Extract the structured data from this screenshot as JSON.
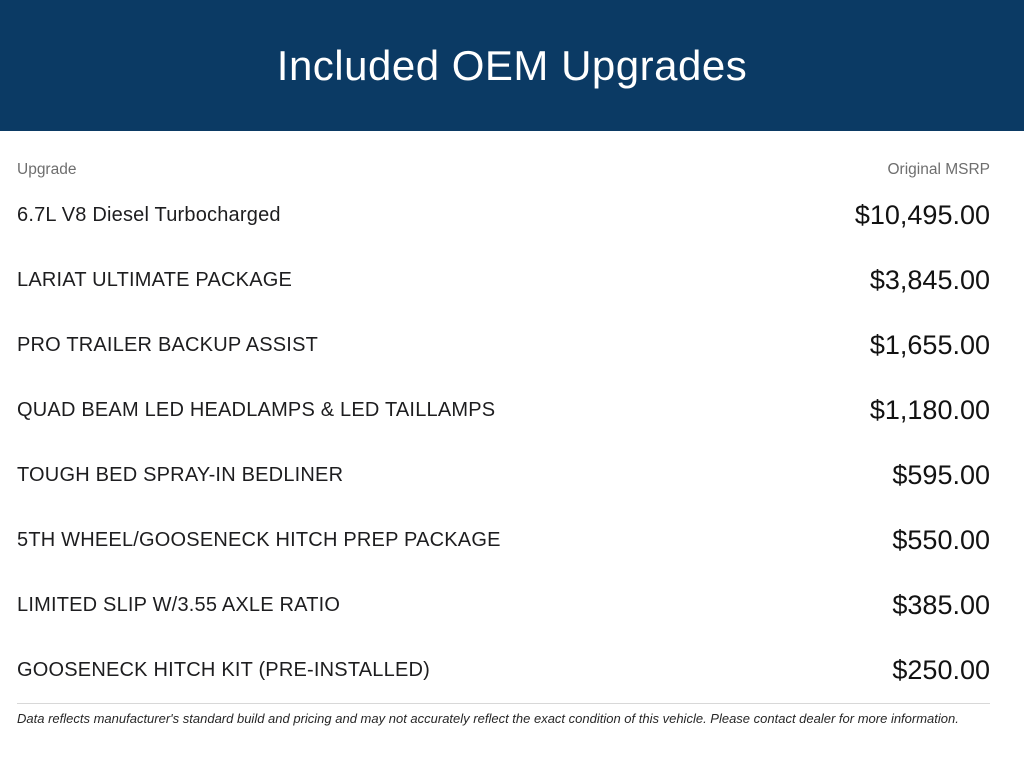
{
  "header": {
    "title": "Included OEM Upgrades",
    "background_color": "#0b3a64",
    "text_color": "#ffffff"
  },
  "table": {
    "columns": {
      "upgrade": "Upgrade",
      "msrp": "Original MSRP"
    },
    "rows": [
      {
        "upgrade": "6.7L V8 Diesel Turbocharged",
        "msrp": "$10,495.00"
      },
      {
        "upgrade": "LARIAT ULTIMATE PACKAGE",
        "msrp": "$3,845.00"
      },
      {
        "upgrade": "PRO TRAILER BACKUP ASSIST",
        "msrp": "$1,655.00"
      },
      {
        "upgrade": "QUAD BEAM LED HEADLAMPS & LED TAILLAMPS",
        "msrp": "$1,180.00"
      },
      {
        "upgrade": "TOUGH BED SPRAY-IN BEDLINER",
        "msrp": "$595.00"
      },
      {
        "upgrade": "5TH WHEEL/GOOSENECK HITCH PREP PACKAGE",
        "msrp": "$550.00"
      },
      {
        "upgrade": "LIMITED SLIP W/3.55 AXLE RATIO",
        "msrp": "$385.00"
      },
      {
        "upgrade": "GOOSENECK HITCH KIT (PRE-INSTALLED)",
        "msrp": "$250.00"
      }
    ]
  },
  "footer": {
    "disclaimer": "Data reflects manufacturer's standard build and pricing and may not accurately reflect the exact condition of this vehicle. Please contact dealer for more information."
  }
}
